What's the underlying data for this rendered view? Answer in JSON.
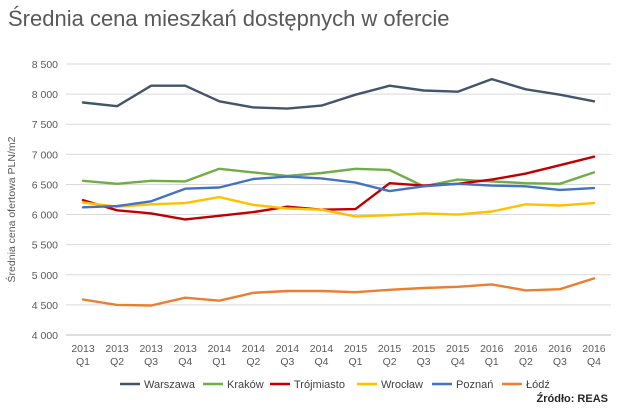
{
  "chart_data": {
    "type": "line",
    "title": "Średnia cena mieszkań dostępnych w ofercie",
    "ylabel": "Średnia cena ofertowa PLN/m2",
    "xlabel": "",
    "source": "Źródło: REAS",
    "ylim": [
      4000,
      8500
    ],
    "yticks": [
      4000,
      4500,
      5000,
      5500,
      6000,
      6500,
      7000,
      7500,
      8000,
      8500
    ],
    "ytick_labels": [
      "4 000",
      "4 500",
      "5 000",
      "5 500",
      "6 000",
      "6 500",
      "7 000",
      "7 500",
      "8 000",
      "8 500"
    ],
    "grid": true,
    "legend_position": "bottom",
    "categories": [
      [
        "2013",
        "Q1"
      ],
      [
        "2013",
        "Q2"
      ],
      [
        "2013",
        "Q3"
      ],
      [
        "2013",
        "Q4"
      ],
      [
        "2014",
        "Q1"
      ],
      [
        "2014",
        "Q2"
      ],
      [
        "2014",
        "Q3"
      ],
      [
        "2014",
        "Q4"
      ],
      [
        "2015",
        "Q1"
      ],
      [
        "2015",
        "Q2"
      ],
      [
        "2015",
        "Q3"
      ],
      [
        "2015",
        "Q4"
      ],
      [
        "2016",
        "Q1"
      ],
      [
        "2016",
        "Q2"
      ],
      [
        "2016",
        "Q3"
      ],
      [
        "2016",
        "Q4"
      ]
    ],
    "series": [
      {
        "name": "Warszawa",
        "color": "#44546A",
        "values": [
          7860,
          7800,
          8140,
          8140,
          7880,
          7780,
          7760,
          7810,
          7990,
          8140,
          8060,
          8040,
          8250,
          8080,
          7990,
          7880
        ]
      },
      {
        "name": "Kraków",
        "color": "#70AD47",
        "values": [
          6560,
          6510,
          6560,
          6550,
          6760,
          6700,
          6640,
          6690,
          6760,
          6740,
          6470,
          6580,
          6550,
          6520,
          6510,
          6700
        ]
      },
      {
        "name": "Trójmiasto",
        "color": "#C00000",
        "values": [
          6240,
          6070,
          6020,
          5920,
          5980,
          6040,
          6130,
          6080,
          6090,
          6520,
          6480,
          6510,
          6580,
          6680,
          6820,
          6960
        ]
      },
      {
        "name": "Wrocław",
        "color": "#FFC000",
        "values": [
          6200,
          6130,
          6170,
          6190,
          6290,
          6160,
          6100,
          6080,
          5970,
          5990,
          6020,
          6000,
          6050,
          6170,
          6150,
          6190
        ]
      },
      {
        "name": "Poznań",
        "color": "#4472C4",
        "values": [
          6120,
          6140,
          6220,
          6430,
          6450,
          6590,
          6630,
          6600,
          6530,
          6390,
          6470,
          6510,
          6480,
          6470,
          6410,
          6440
        ]
      },
      {
        "name": "Łódź",
        "color": "#ED7D31",
        "values": [
          4590,
          4500,
          4490,
          4620,
          4570,
          4700,
          4730,
          4730,
          4710,
          4750,
          4780,
          4800,
          4840,
          4740,
          4760,
          4940
        ]
      }
    ]
  }
}
